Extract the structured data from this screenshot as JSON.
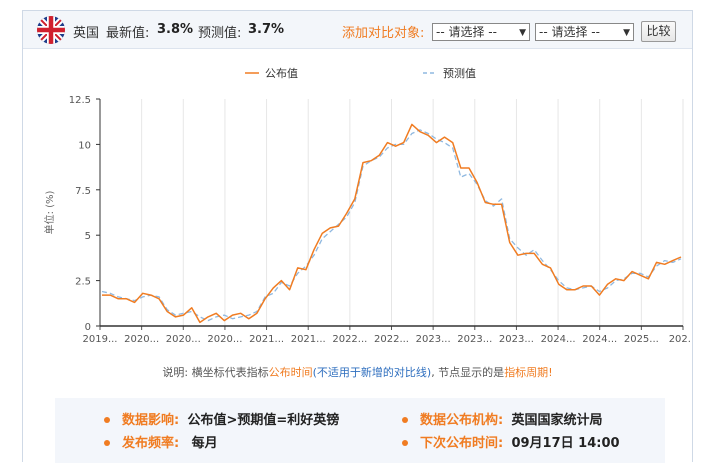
{
  "header": {
    "country": "英国",
    "latest_label": "最新值:",
    "latest_value": "3.8%",
    "forecast_label": "预测值:",
    "forecast_value": "3.7%",
    "add_compare_label": "添加对比对象:",
    "select1": "-- 请选择 --",
    "select2": "-- 请选择 --",
    "compare_button": "比较"
  },
  "chart_data": {
    "type": "line",
    "ylabel": "单位: (%)",
    "ylim": [
      0,
      12.5
    ],
    "yticks": [
      "0",
      "2.5",
      "5",
      "7.5",
      "10",
      "12.5"
    ],
    "xtick_labels": [
      "2019...",
      "2020...",
      "2020...",
      "2020...",
      "2021...",
      "2021...",
      "2022...",
      "2022...",
      "2023...",
      "2023...",
      "2023...",
      "2024...",
      "2024...",
      "2025...",
      "202..."
    ],
    "legend_position": "top",
    "grid": "vertical",
    "series": [
      {
        "name": "公布值",
        "color": "#f07c22",
        "dash": "solid",
        "values": [
          1.7,
          1.7,
          1.5,
          1.5,
          1.3,
          1.8,
          1.7,
          1.5,
          0.8,
          0.5,
          0.6,
          1.0,
          0.2,
          0.5,
          0.7,
          0.3,
          0.6,
          0.7,
          0.4,
          0.7,
          1.5,
          2.1,
          2.5,
          2.0,
          3.2,
          3.1,
          4.2,
          5.1,
          5.4,
          5.5,
          6.2,
          7.0,
          9.0,
          9.1,
          9.4,
          10.1,
          9.9,
          10.1,
          11.1,
          10.7,
          10.5,
          10.1,
          10.4,
          10.1,
          8.7,
          8.7,
          7.9,
          6.8,
          6.7,
          6.7,
          4.6,
          3.9,
          4.0,
          4.0,
          3.4,
          3.2,
          2.3,
          2.0,
          2.0,
          2.2,
          2.2,
          1.7,
          2.3,
          2.6,
          2.5,
          3.0,
          2.8,
          2.6,
          3.5,
          3.4,
          3.6,
          3.8
        ]
      },
      {
        "name": "预测值",
        "color": "#8fb8e0",
        "dash": "dashed",
        "values": [
          1.9,
          1.8,
          1.6,
          1.5,
          1.4,
          1.6,
          1.7,
          1.6,
          0.9,
          0.6,
          0.7,
          0.8,
          0.5,
          0.3,
          0.5,
          0.6,
          0.4,
          0.5,
          0.6,
          0.8,
          1.6,
          1.8,
          2.4,
          2.2,
          2.9,
          3.3,
          3.9,
          4.8,
          5.2,
          5.6,
          6.0,
          6.8,
          8.8,
          9.1,
          9.3,
          9.8,
          10.0,
          10.0,
          10.6,
          10.8,
          10.6,
          10.3,
          10.1,
          9.8,
          8.2,
          8.4,
          7.8,
          6.9,
          6.6,
          7.0,
          4.8,
          4.3,
          3.9,
          4.2,
          3.6,
          3.1,
          2.5,
          2.1,
          2.0,
          2.1,
          2.2,
          1.9,
          2.1,
          2.5,
          2.6,
          2.9,
          2.9,
          2.7,
          3.3,
          3.6,
          3.5,
          3.7
        ]
      }
    ]
  },
  "note": {
    "prefix": "说明: 横坐标代表指标",
    "highlight1": "公布时间",
    "paren": "(不适用于新增的对比线)",
    "mid": ", 节点显示的是",
    "highlight2": "指标周期",
    "suffix": "!"
  },
  "info": {
    "impact_label": "数据影响:",
    "impact_value": "公布值>预期值=利好英镑",
    "agency_label": "数据公布机构:",
    "agency_value": "英国国家统计局",
    "freq_label": "发布频率:",
    "freq_value": "每月",
    "next_label": "下次公布时间:",
    "next_value": "09月17日 14:00"
  }
}
